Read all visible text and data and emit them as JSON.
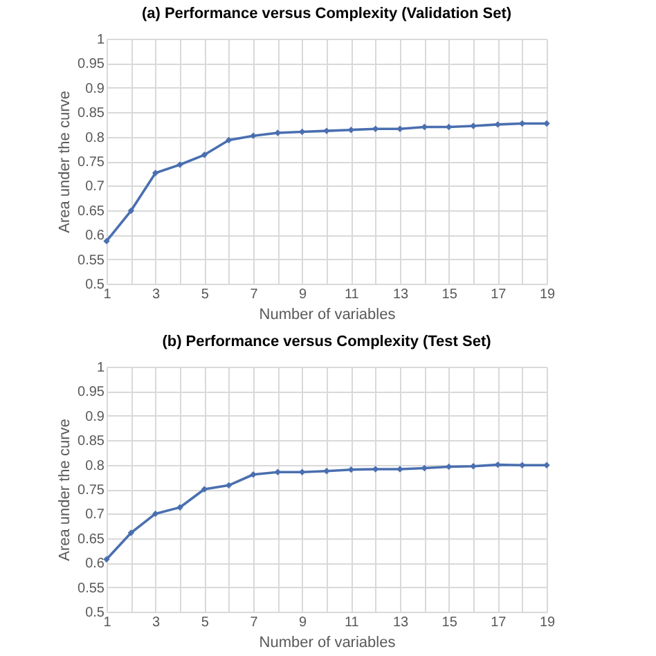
{
  "chart_data": [
    {
      "type": "line",
      "title": "(a) Performance versus Complexity (Validation Set)",
      "xlabel": "Number of variables",
      "ylabel": "Area under the curve",
      "x": [
        1,
        2,
        3,
        4,
        5,
        6,
        7,
        8,
        9,
        10,
        11,
        12,
        13,
        14,
        15,
        16,
        17,
        18,
        19
      ],
      "series": [
        {
          "color": "#4a6fb0",
          "values": [
            0.587,
            0.649,
            0.726,
            0.743,
            0.763,
            0.793,
            0.802,
            0.808,
            0.81,
            0.812,
            0.814,
            0.816,
            0.816,
            0.82,
            0.82,
            0.822,
            0.825,
            0.827,
            0.827
          ]
        }
      ],
      "xlim": [
        1,
        19
      ],
      "xticks": [
        1,
        {
          "value": 2,
          "label": null
        },
        3,
        {
          "value": 4,
          "label": null
        },
        5,
        {
          "value": 6,
          "label": null
        },
        7,
        {
          "value": 8,
          "label": null
        },
        9,
        {
          "value": 10,
          "label": null
        },
        11,
        {
          "value": 12,
          "label": null
        },
        13,
        {
          "value": 14,
          "label": null
        },
        15,
        {
          "value": 16,
          "label": null
        },
        17,
        {
          "value": 18,
          "label": null
        },
        19
      ],
      "ylim": [
        0.5,
        1
      ],
      "yticks": [
        0.5,
        0.55,
        0.6,
        0.65,
        0.7,
        0.75,
        0.8,
        0.85,
        0.9,
        0.95,
        1
      ],
      "grid": true,
      "marker": "diamond"
    },
    {
      "type": "line",
      "title": "(b) Performance versus Complexity (Test Set)",
      "xlabel": "Number of variables",
      "ylabel": "Area under the curve",
      "x": [
        1,
        2,
        3,
        4,
        5,
        6,
        7,
        8,
        9,
        10,
        11,
        12,
        13,
        14,
        15,
        16,
        17,
        18,
        19
      ],
      "series": [
        {
          "color": "#4a6fb0",
          "values": [
            0.607,
            0.661,
            0.7,
            0.713,
            0.75,
            0.758,
            0.78,
            0.785,
            0.785,
            0.787,
            0.79,
            0.791,
            0.791,
            0.793,
            0.796,
            0.797,
            0.8,
            0.799,
            0.799
          ]
        }
      ],
      "xlim": [
        1,
        19
      ],
      "xticks": [
        1,
        {
          "value": 2,
          "label": null
        },
        3,
        {
          "value": 4,
          "label": null
        },
        5,
        {
          "value": 6,
          "label": null
        },
        7,
        {
          "value": 8,
          "label": null
        },
        9,
        {
          "value": 10,
          "label": null
        },
        11,
        {
          "value": 12,
          "label": null
        },
        13,
        {
          "value": 14,
          "label": null
        },
        15,
        {
          "value": 16,
          "label": null
        },
        17,
        {
          "value": 18,
          "label": null
        },
        19
      ],
      "ylim": [
        0.5,
        1
      ],
      "yticks": [
        0.5,
        0.55,
        0.6,
        0.65,
        0.7,
        0.75,
        0.8,
        0.85,
        0.9,
        0.95,
        1
      ],
      "grid": true,
      "marker": "diamond"
    }
  ]
}
